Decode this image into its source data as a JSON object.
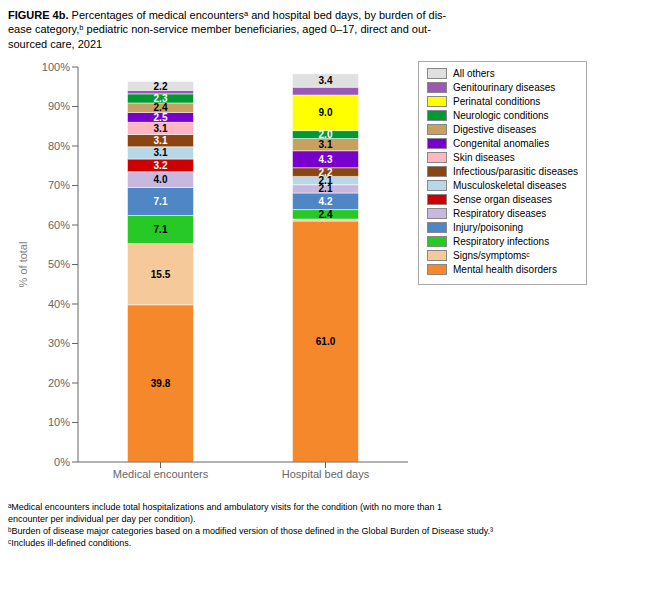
{
  "chart_data": {
    "type": "bar",
    "stacked": true,
    "orientation": "vertical",
    "title": "FIGURE 4b.",
    "subtitle": "Percentages of medical encountersᵃ and hospital bed days, by burden of dis-\nease category,ᵇ pediatric non-service member beneficiaries, aged 0–17, direct and out-\nsourced care, 2021",
    "annotations": [
      "ᵃMedical encounters include total hospitalizations and ambulatory visits for the condition (with no more than 1\nencounter per individual per day per condition).",
      "ᵇBurden of disease major categories based on a modified version of those defined in the Global Burden of Disease study.³",
      "ᶜIncludes ill-defined conditions."
    ],
    "ylabel": "% of total",
    "categories": [
      "Medical encounters",
      "Hospital bed days"
    ],
    "series": [
      {
        "name": "Mental health disorders",
        "color": "#F5882A",
        "values": [
          39.8,
          61.0
        ],
        "value_labels": [
          "39.8",
          "61.0"
        ]
      },
      {
        "name": "Signs/symptomsᶜ",
        "color": "#F5C99A",
        "values": [
          15.5,
          0.5
        ],
        "value_labels": [
          "15.5",
          null
        ]
      },
      {
        "name": "Respiratory infections",
        "color": "#26C926",
        "values": [
          7.1,
          2.4
        ],
        "value_labels": [
          "7.1",
          "2.4"
        ]
      },
      {
        "name": "Injury/poisoning",
        "color": "#4F86C6",
        "values": [
          7.1,
          4.2
        ],
        "value_labels": [
          "7.1",
          "4.2"
        ]
      },
      {
        "name": "Respiratory diseases",
        "color": "#C8B8E0",
        "values": [
          4.0,
          2.1
        ],
        "value_labels": [
          "4.0",
          "2.1"
        ]
      },
      {
        "name": "Sense organ diseases",
        "color": "#CC0000",
        "values": [
          3.2,
          0.0
        ],
        "value_labels": [
          "3.2",
          null
        ]
      },
      {
        "name": "Musculoskeletal diseases",
        "color": "#B8D8E8",
        "values": [
          3.1,
          2.1
        ],
        "value_labels": [
          "3.1",
          "2.1"
        ]
      },
      {
        "name": "Infectious/parasitic diseases",
        "color": "#8B4513",
        "values": [
          3.1,
          2.2
        ],
        "value_labels": [
          "3.1",
          "2.2"
        ]
      },
      {
        "name": "Skin diseases",
        "color": "#FFB6C1",
        "values": [
          3.1,
          0.0
        ],
        "value_labels": [
          "3.1",
          null
        ]
      },
      {
        "name": "Congenital anomalies",
        "color": "#7700CC",
        "values": [
          2.5,
          4.3
        ],
        "value_labels": [
          "2.5",
          "4.3"
        ]
      },
      {
        "name": "Digestive diseases",
        "color": "#C8A060",
        "values": [
          2.4,
          3.1
        ],
        "value_labels": [
          "2.4",
          "3.1"
        ]
      },
      {
        "name": "Neurologic conditions",
        "color": "#009933",
        "values": [
          2.3,
          2.0
        ],
        "value_labels": [
          "2.3",
          "2.0"
        ]
      },
      {
        "name": "Perinatal conditions",
        "color": "#FFFF00",
        "values": [
          0.0,
          9.0
        ],
        "value_labels": [
          null,
          "9.0"
        ]
      },
      {
        "name": "Genitourinary diseases",
        "color": "#9B59B6",
        "values": [
          0.9,
          2.0
        ],
        "value_labels": [
          null,
          null
        ]
      },
      {
        "name": "All others",
        "color": "#E0E0E0",
        "values": [
          2.2,
          3.4
        ],
        "value_labels": [
          "2.2",
          "3.4"
        ]
      }
    ],
    "ylim": [
      0,
      100
    ],
    "yticks": [
      {
        "value": 0,
        "label": "0%"
      },
      {
        "value": 10,
        "label": "10%"
      },
      {
        "value": 20,
        "label": "20%"
      },
      {
        "value": 30,
        "label": "30%"
      },
      {
        "value": 40,
        "label": "40%"
      },
      {
        "value": 50,
        "label": "50%"
      },
      {
        "value": 60,
        "label": "60%"
      },
      {
        "value": 70,
        "label": "70%"
      },
      {
        "value": 80,
        "label": "80%"
      },
      {
        "value": 90,
        "label": "90%"
      },
      {
        "value": 100,
        "label": "100%"
      }
    ],
    "grid": false,
    "data_labels": true,
    "legend": "right"
  }
}
